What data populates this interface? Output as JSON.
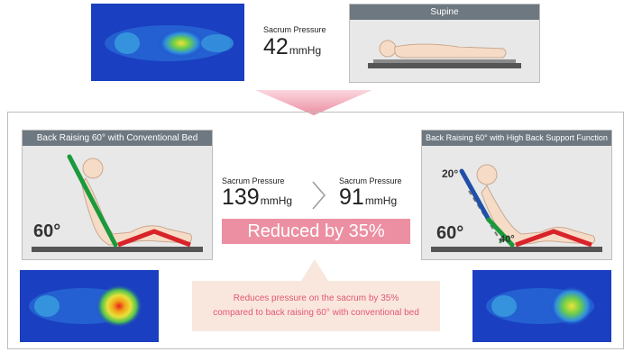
{
  "top": {
    "pressure_label": "Sacrum Pressure",
    "pressure_value": "42",
    "pressure_unit": "mmHg",
    "supine_title": "Supine"
  },
  "left": {
    "title": "Back Raising 60° with Conventional Bed",
    "angle_label": "60°"
  },
  "right": {
    "title": "Back Raising 60° with High Back Support Function",
    "angle_label": "60°",
    "upper_angle_label": "20°",
    "lower_angle_label": "40°"
  },
  "center": {
    "before_label": "Sacrum Pressure",
    "before_value": "139",
    "before_unit": "mmHg",
    "after_label": "Sacrum Pressure",
    "after_value": "91",
    "after_unit": "mmHg",
    "banner": "Reduced by 35%",
    "note_line1": "Reduces pressure on the sacrum by 35%",
    "note_line2": "compared to back raising 60° with conventional bed"
  },
  "colors": {
    "green_line": "#1a9a3a",
    "red_line": "#d8232a",
    "blue_line": "#1f4fa8",
    "banner_bg": "#ec8fa2",
    "note_text": "#e2586f",
    "note_bg": "#f9e7de",
    "pink_arrow": "#ec8fa2",
    "heatmap_bg": "#1a3fc0"
  }
}
